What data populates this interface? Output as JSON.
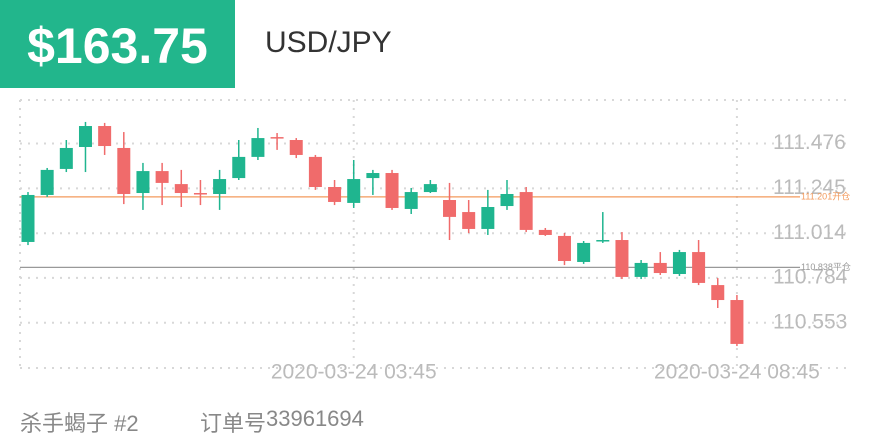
{
  "header": {
    "price": "$163.75",
    "symbol": "USD/JPY"
  },
  "chart_data": {
    "type": "candlestick",
    "categories": [
      null,
      null,
      null,
      null,
      null,
      null,
      null,
      null,
      null,
      null,
      null,
      null,
      null,
      null,
      null,
      null,
      null,
      "2020-03-24 03:45",
      null,
      null,
      null,
      null,
      null,
      null,
      null,
      null,
      null,
      null,
      null,
      null,
      null,
      null,
      null,
      null,
      null,
      null,
      null,
      "2020-03-24 08:45"
    ],
    "open": [
      110.969,
      111.211,
      111.345,
      111.458,
      111.566,
      111.453,
      111.221,
      111.334,
      111.267,
      111.221,
      111.216,
      111.298,
      111.407,
      111.509,
      111.494,
      111.407,
      111.252,
      111.17,
      111.298,
      111.324,
      111.139,
      111.226,
      111.185,
      111.123,
      111.036,
      111.154,
      111.226,
      111.031,
      111.0,
      110.866,
      110.974,
      110.979,
      110.789,
      110.861,
      110.804,
      110.917,
      110.747,
      110.67
    ],
    "high": [
      111.226,
      111.35,
      111.494,
      111.587,
      111.582,
      111.535,
      111.376,
      111.376,
      111.34,
      111.288,
      111.34,
      111.494,
      111.556,
      111.53,
      111.504,
      111.417,
      111.288,
      111.391,
      111.34,
      111.34,
      111.247,
      111.288,
      111.273,
      111.185,
      111.237,
      111.288,
      111.252,
      111.041,
      111.015,
      110.974,
      111.123,
      111.02,
      110.876,
      110.917,
      110.928,
      110.979,
      110.783,
      110.696
    ],
    "low": [
      110.953,
      111.201,
      111.329,
      111.329,
      111.417,
      111.164,
      111.134,
      111.159,
      111.149,
      111.159,
      111.134,
      111.288,
      111.391,
      111.443,
      111.401,
      111.237,
      111.159,
      111.144,
      111.211,
      111.134,
      111.113,
      111.221,
      110.979,
      111.015,
      111.005,
      111.134,
      111.02,
      111.0,
      110.85,
      110.856,
      110.964,
      110.778,
      110.778,
      110.799,
      110.794,
      110.747,
      110.629,
      110.433
    ],
    "close": [
      111.211,
      111.34,
      111.453,
      111.566,
      111.463,
      111.216,
      111.334,
      111.273,
      111.221,
      111.216,
      111.293,
      111.407,
      111.504,
      111.504,
      111.417,
      111.252,
      111.175,
      111.293,
      111.324,
      111.144,
      111.226,
      111.267,
      111.098,
      111.036,
      111.149,
      111.216,
      111.031,
      111.005,
      110.871,
      110.964,
      110.979,
      110.789,
      110.861,
      110.809,
      110.917,
      110.758,
      110.67,
      110.444
    ],
    "up_color": "#1fb58f",
    "down_color": "#f06b6b",
    "ylim": [
      110.32,
      111.7
    ],
    "yticks": [
      110.553,
      110.784,
      111.014,
      111.245,
      111.476
    ],
    "grid": true,
    "reference_lines": [
      {
        "value": 111.201,
        "label": "111.201开仓",
        "color": "#f39a5c"
      },
      {
        "value": 110.838,
        "label": "110.838平仓",
        "color": "#999999"
      }
    ]
  },
  "footer": {
    "strategy": "杀手蝎子 #2",
    "order_label": "订单号",
    "order_number": "33961694"
  }
}
